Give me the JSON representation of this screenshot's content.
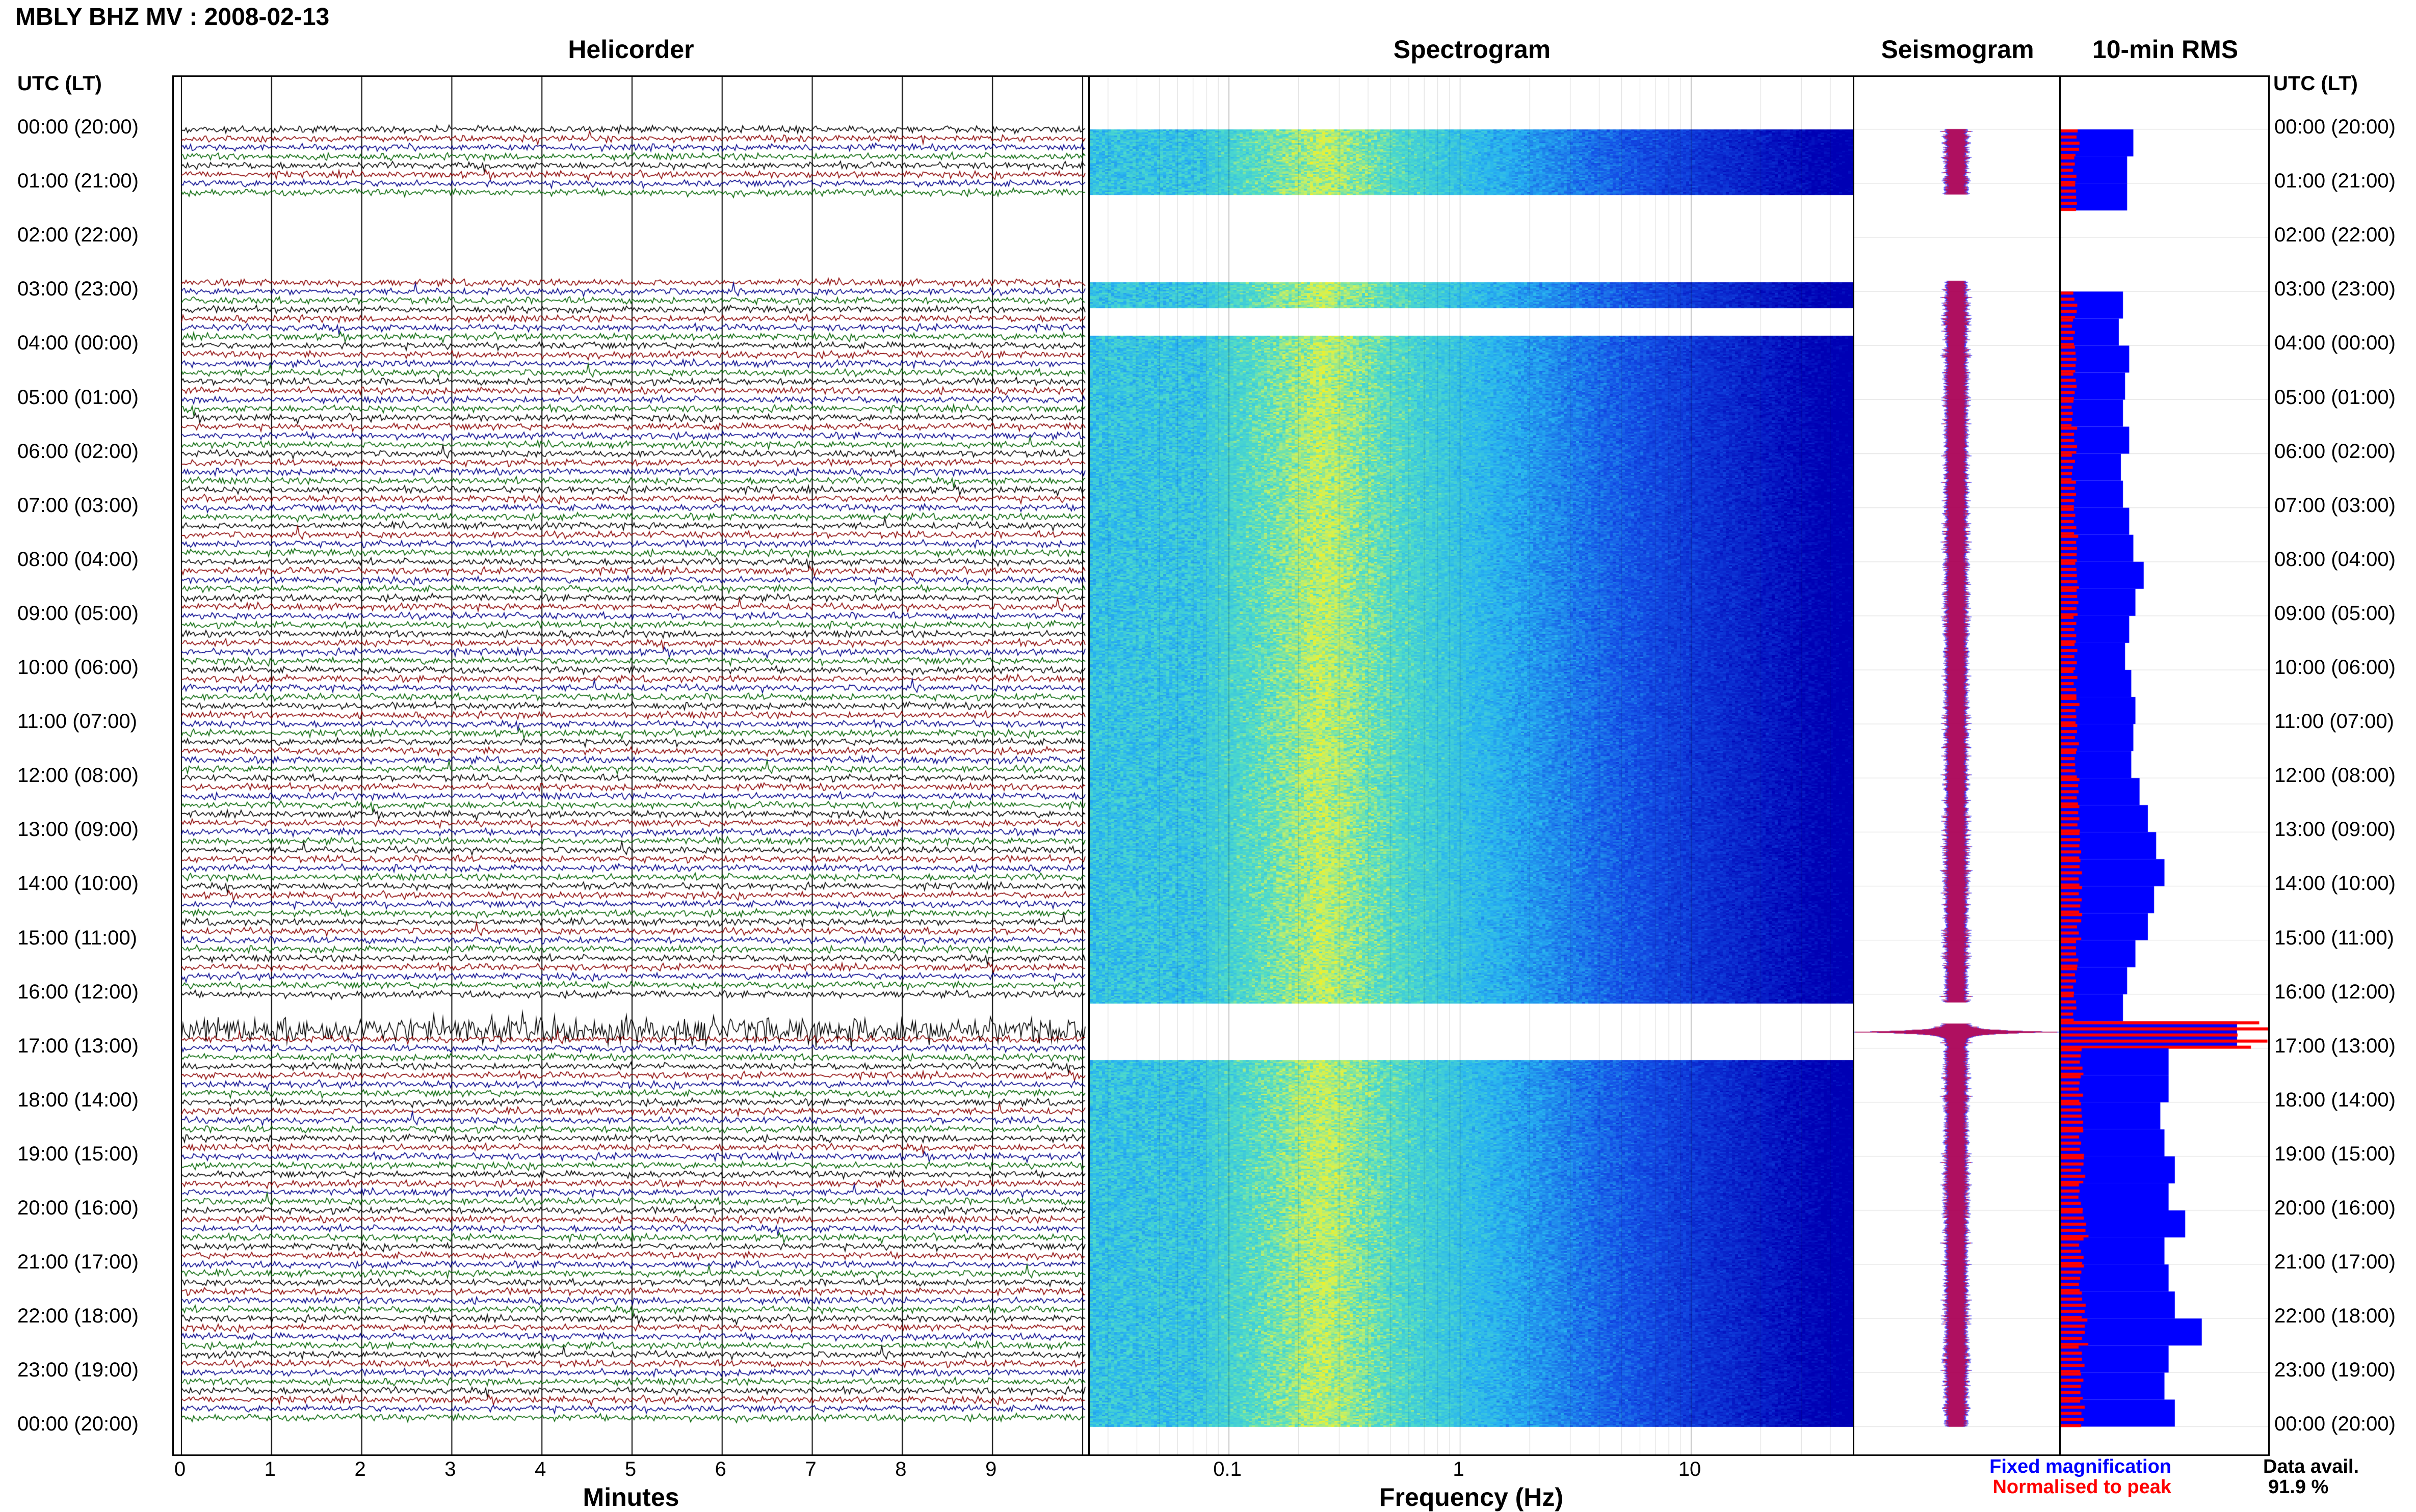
{
  "header": {
    "title": "MBLY BHZ MV : 2008-02-13",
    "axis_caption": "UTC (LT)"
  },
  "panels": {
    "helicorder": "Helicorder",
    "spectrogram": "Spectrogram",
    "seismogram": "Seismogram",
    "rms": "10-min RMS"
  },
  "hour_labels": [
    "00:00 (20:00)",
    "01:00 (21:00)",
    "02:00 (22:00)",
    "03:00 (23:00)",
    "04:00 (00:00)",
    "05:00 (01:00)",
    "06:00 (02:00)",
    "07:00 (03:00)",
    "08:00 (04:00)",
    "09:00 (05:00)",
    "10:00 (06:00)",
    "11:00 (07:00)",
    "12:00 (08:00)",
    "13:00 (09:00)",
    "14:00 (10:00)",
    "15:00 (11:00)",
    "16:00 (12:00)",
    "17:00 (13:00)",
    "18:00 (14:00)",
    "19:00 (15:00)",
    "20:00 (16:00)",
    "21:00 (17:00)",
    "22:00 (18:00)",
    "23:00 (19:00)",
    "00:00 (20:00)"
  ],
  "x_axes": {
    "minutes_label": "Minutes",
    "minutes_ticks": [
      "0",
      "1",
      "2",
      "3",
      "4",
      "5",
      "6",
      "7",
      "8",
      "9"
    ],
    "frequency_label": "Frequency (Hz)",
    "frequency_ticks": [
      "0.1",
      "1",
      "10"
    ]
  },
  "legend": {
    "fixed": "Fixed magnification",
    "normalised": "Normalised to peak",
    "fixed_color": "#0000ff",
    "normalised_color": "#ff0000"
  },
  "availability": {
    "label": "Data avail.",
    "value": "91.9 %"
  },
  "colors": {
    "trace_cycle": [
      "#000000",
      "#8b0000",
      "#00008b",
      "#006400"
    ]
  },
  "chart_data": {
    "type": "heatmap",
    "station": "MBLY BHZ MV",
    "date": "2008-02-13",
    "helicorder": {
      "x_unit": "minutes",
      "xlim": [
        0,
        10
      ],
      "y_unit": "UTC hours",
      "ylim": [
        0,
        24
      ],
      "gaps_utc_hours": [
        [
          1.2,
          2.8
        ],
        [
          16.15,
          16.55
        ]
      ],
      "high_amplitude_window_utc_hours": [
        16.3,
        16.8
      ]
    },
    "spectrogram": {
      "x_unit": "Hz",
      "x_scale": "log",
      "xlim": [
        0.025,
        50
      ],
      "peak_band_hz": [
        0.18,
        0.35
      ],
      "gaps_utc_hours": [
        [
          1.2,
          2.8
        ],
        [
          3.3,
          3.8
        ],
        [
          16.15,
          17.2
        ]
      ]
    },
    "seismogram": {
      "largest_event_utc_hours": 16.7
    },
    "rms_10min": {
      "hours": [
        0.0,
        0.5,
        1.0,
        3.0,
        3.5,
        4.0,
        4.5,
        5.0,
        5.5,
        6.0,
        6.5,
        7.0,
        7.5,
        8.0,
        8.5,
        9.0,
        9.5,
        10.0,
        10.5,
        11.0,
        11.5,
        12.0,
        12.5,
        13.0,
        13.5,
        14.0,
        14.5,
        15.0,
        15.5,
        16.0,
        16.5,
        17.0,
        17.5,
        18.0,
        18.5,
        19.0,
        19.5,
        20.0,
        20.5,
        21.0,
        21.5,
        22.0,
        22.5,
        23.0,
        23.5
      ],
      "fixed": [
        0.35,
        0.32,
        0.32,
        0.3,
        0.28,
        0.33,
        0.31,
        0.3,
        0.33,
        0.29,
        0.3,
        0.33,
        0.35,
        0.4,
        0.36,
        0.33,
        0.31,
        0.34,
        0.36,
        0.35,
        0.34,
        0.38,
        0.42,
        0.46,
        0.5,
        0.45,
        0.42,
        0.36,
        0.32,
        0.3,
        0.85,
        0.52,
        0.52,
        0.48,
        0.5,
        0.55,
        0.52,
        0.6,
        0.5,
        0.52,
        0.55,
        0.68,
        0.52,
        0.5,
        0.55
      ],
      "normalised": [
        0.08,
        0.07,
        0.07,
        0.07,
        0.06,
        0.07,
        0.07,
        0.06,
        0.07,
        0.06,
        0.07,
        0.07,
        0.08,
        0.08,
        0.08,
        0.07,
        0.07,
        0.07,
        0.08,
        0.08,
        0.07,
        0.08,
        0.09,
        0.1,
        0.1,
        0.09,
        0.09,
        0.08,
        0.07,
        0.07,
        1.0,
        0.1,
        0.1,
        0.1,
        0.1,
        0.11,
        0.1,
        0.12,
        0.1,
        0.1,
        0.11,
        0.12,
        0.1,
        0.1,
        0.11
      ]
    }
  }
}
